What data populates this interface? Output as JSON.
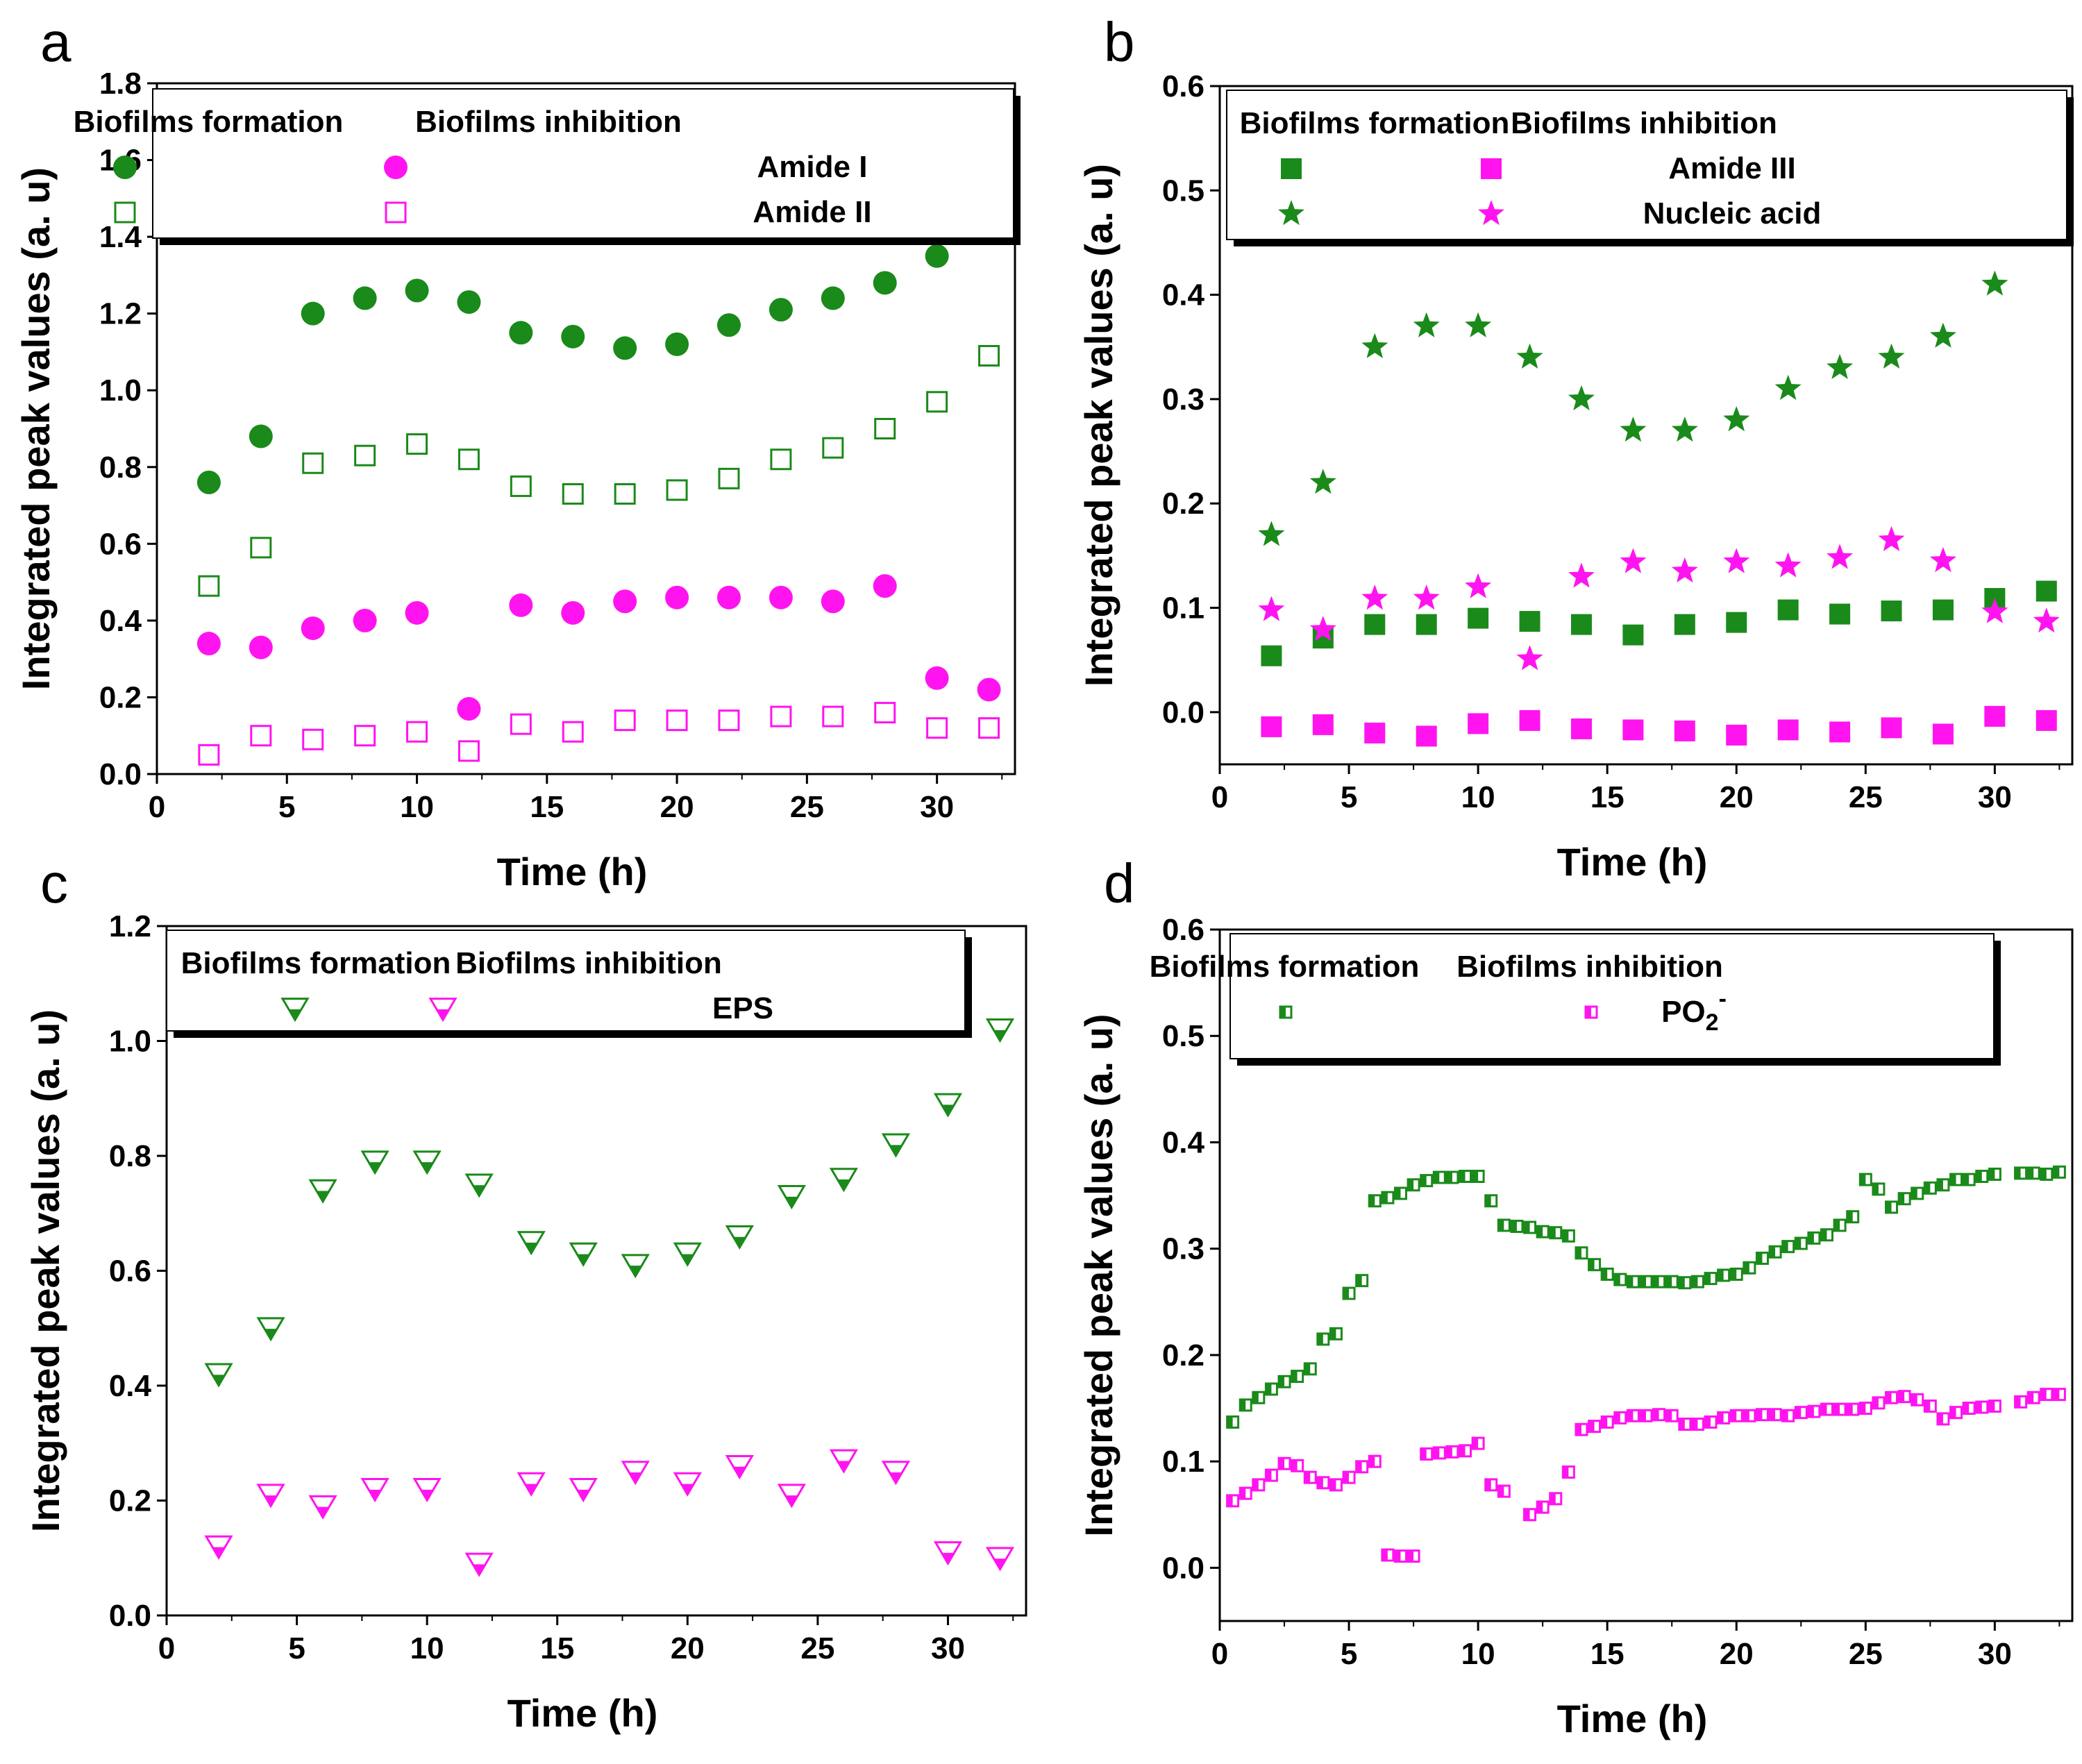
{
  "colors": {
    "formation": "#1a8a1a",
    "inhibition": "#ff14f0",
    "frame": "#000000"
  },
  "chart_data": [
    {
      "panel": "a",
      "type": "scatter",
      "xlabel": "Time (h)",
      "ylabel": "Integrated peak values (a. u)",
      "xlim": [
        0,
        33
      ],
      "ylim": [
        0,
        1.8
      ],
      "xticks": [
        0,
        5,
        10,
        15,
        20,
        25,
        30
      ],
      "yticks": [
        0.0,
        0.2,
        0.4,
        0.6,
        0.8,
        1.0,
        1.2,
        1.4,
        1.6,
        1.8
      ],
      "legend": {
        "header_formation": "Biofilms formation",
        "header_inhibition": "Biofilms inhibition",
        "rows": [
          {
            "label": "Amide I",
            "marker": "circle-filled"
          },
          {
            "label": "Amide II",
            "marker": "square-open"
          }
        ]
      },
      "series": [
        {
          "name": "Amide I - Biofilms formation",
          "group": "formation",
          "marker": "circle-filled",
          "x": [
            2,
            4,
            6,
            8,
            10,
            12,
            14,
            16,
            18,
            20,
            22,
            24,
            26,
            28,
            30
          ],
          "y": [
            0.76,
            0.88,
            1.2,
            1.24,
            1.26,
            1.23,
            1.15,
            1.14,
            1.11,
            1.12,
            1.17,
            1.21,
            1.24,
            1.28,
            1.35
          ]
        },
        {
          "name": "Amide II - Biofilms formation",
          "group": "formation",
          "marker": "square-open",
          "x": [
            2,
            4,
            6,
            8,
            10,
            12,
            14,
            16,
            18,
            20,
            22,
            24,
            26,
            28,
            30,
            32
          ],
          "y": [
            0.49,
            0.59,
            0.81,
            0.83,
            0.86,
            0.82,
            0.75,
            0.73,
            0.73,
            0.74,
            0.77,
            0.82,
            0.85,
            0.9,
            0.97,
            1.09
          ]
        },
        {
          "name": "Amide I - Biofilms inhibition",
          "group": "inhibition",
          "marker": "circle-filled",
          "x": [
            2,
            4,
            6,
            8,
            10,
            12,
            14,
            16,
            18,
            20,
            22,
            24,
            26,
            28,
            30,
            32
          ],
          "y": [
            0.34,
            0.33,
            0.38,
            0.4,
            0.42,
            0.17,
            0.44,
            0.42,
            0.45,
            0.46,
            0.46,
            0.46,
            0.45,
            0.49,
            0.25,
            0.22
          ]
        },
        {
          "name": "Amide II - Biofilms inhibition",
          "group": "inhibition",
          "marker": "square-open",
          "x": [
            2,
            4,
            6,
            8,
            10,
            12,
            14,
            16,
            18,
            20,
            22,
            24,
            26,
            28,
            30,
            32
          ],
          "y": [
            0.05,
            0.1,
            0.09,
            0.1,
            0.11,
            0.06,
            0.13,
            0.11,
            0.14,
            0.14,
            0.14,
            0.15,
            0.15,
            0.16,
            0.12,
            0.12
          ]
        }
      ]
    },
    {
      "panel": "b",
      "type": "scatter",
      "xlabel": "Time (h)",
      "ylabel": "Integrated peak values (a. u)",
      "xlim": [
        0,
        33
      ],
      "ylim": [
        -0.05,
        0.6
      ],
      "xticks": [
        0,
        5,
        10,
        15,
        20,
        25,
        30
      ],
      "yticks": [
        0.0,
        0.1,
        0.2,
        0.3,
        0.4,
        0.5,
        0.6
      ],
      "legend": {
        "header_formation": "Biofilms formation",
        "header_inhibition": "Biofilms inhibition",
        "rows": [
          {
            "label": "Amide III",
            "marker": "square-filled"
          },
          {
            "label": "Nucleic acid",
            "marker": "star"
          }
        ]
      },
      "series": [
        {
          "name": "Nucleic acid - Biofilms formation",
          "group": "formation",
          "marker": "star",
          "x": [
            2,
            4,
            6,
            8,
            10,
            12,
            14,
            16,
            18,
            20,
            22,
            24,
            26,
            28,
            30
          ],
          "y": [
            0.17,
            0.22,
            0.35,
            0.37,
            0.37,
            0.34,
            0.3,
            0.27,
            0.27,
            0.28,
            0.31,
            0.33,
            0.34,
            0.36,
            0.41
          ]
        },
        {
          "name": "Amide III - Biofilms formation",
          "group": "formation",
          "marker": "square-filled",
          "x": [
            2,
            4,
            6,
            8,
            10,
            12,
            14,
            16,
            18,
            20,
            22,
            24,
            26,
            28,
            30,
            32
          ],
          "y": [
            0.054,
            0.071,
            0.084,
            0.084,
            0.09,
            0.087,
            0.084,
            0.074,
            0.084,
            0.086,
            0.098,
            0.094,
            0.097,
            0.098,
            0.109,
            0.116
          ]
        },
        {
          "name": "Nucleic acid - Biofilms inhibition",
          "group": "inhibition",
          "marker": "star",
          "x": [
            2,
            4,
            6,
            8,
            10,
            12,
            14,
            16,
            18,
            20,
            22,
            24,
            26,
            28,
            30,
            32
          ],
          "y": [
            0.098,
            0.079,
            0.109,
            0.109,
            0.12,
            0.051,
            0.13,
            0.144,
            0.135,
            0.144,
            0.14,
            0.148,
            0.165,
            0.145,
            0.096,
            0.087
          ]
        },
        {
          "name": "Amide III - Biofilms inhibition",
          "group": "inhibition",
          "marker": "square-filled",
          "x": [
            2,
            4,
            6,
            8,
            10,
            12,
            14,
            16,
            18,
            20,
            22,
            24,
            26,
            28,
            30,
            32
          ],
          "y": [
            -0.014,
            -0.012,
            -0.02,
            -0.023,
            -0.011,
            -0.008,
            -0.016,
            -0.017,
            -0.018,
            -0.022,
            -0.017,
            -0.019,
            -0.015,
            -0.021,
            -0.004,
            -0.008
          ]
        }
      ]
    },
    {
      "panel": "c",
      "type": "scatter",
      "xlabel": "Time (h)",
      "ylabel": "Integrated peak values (a. u)",
      "xlim": [
        0,
        33
      ],
      "ylim": [
        0,
        1.2
      ],
      "xticks": [
        0,
        5,
        10,
        15,
        20,
        25,
        30
      ],
      "yticks": [
        0.0,
        0.2,
        0.4,
        0.6,
        0.8,
        1.0,
        1.2
      ],
      "legend": {
        "header_formation": "Biofilms formation",
        "header_inhibition": "Biofilms inhibition",
        "rows": [
          {
            "label": "EPS",
            "marker": "triangle-down-half"
          }
        ]
      },
      "series": [
        {
          "name": "EPS - Biofilms formation",
          "group": "formation",
          "marker": "triangle-down-half",
          "x": [
            2,
            4,
            6,
            8,
            10,
            12,
            14,
            16,
            18,
            20,
            22,
            24,
            26,
            28,
            30,
            32
          ],
          "y": [
            0.42,
            0.5,
            0.74,
            0.79,
            0.79,
            0.75,
            0.65,
            0.63,
            0.61,
            0.63,
            0.66,
            0.73,
            0.76,
            0.82,
            0.89,
            1.02
          ]
        },
        {
          "name": "EPS - Biofilms inhibition",
          "group": "inhibition",
          "marker": "triangle-down-half",
          "x": [
            2,
            4,
            6,
            8,
            10,
            12,
            14,
            16,
            18,
            20,
            22,
            24,
            26,
            28,
            30,
            32
          ],
          "y": [
            0.12,
            0.21,
            0.19,
            0.22,
            0.22,
            0.09,
            0.23,
            0.22,
            0.25,
            0.23,
            0.26,
            0.21,
            0.27,
            0.25,
            0.11,
            0.1
          ]
        }
      ]
    },
    {
      "panel": "d",
      "type": "scatter",
      "xlabel": "Time (h)",
      "ylabel": "Integrated peak values (a. u)",
      "xlim": [
        0,
        33
      ],
      "ylim": [
        -0.05,
        0.6
      ],
      "xticks": [
        0,
        5,
        10,
        15,
        20,
        25,
        30
      ],
      "yticks": [
        0.0,
        0.1,
        0.2,
        0.3,
        0.4,
        0.5,
        0.6
      ],
      "legend": {
        "header_formation": "Biofilms formation",
        "header_inhibition": "Biofilms inhibition",
        "rows": [
          {
            "label": "PO",
            "subscript": "2",
            "superscript": "-",
            "marker": "square-half"
          }
        ]
      },
      "series": [
        {
          "name": "PO2- - Biofilms formation",
          "group": "formation",
          "marker": "square-half",
          "x": [
            0.5,
            1,
            1.5,
            2,
            2.5,
            3,
            3.5,
            4,
            4.5,
            5,
            5.5,
            6,
            6.5,
            7,
            7.5,
            8,
            8.5,
            9,
            9.5,
            10,
            10.5,
            11,
            11.5,
            12,
            12.5,
            13,
            13.5,
            14,
            14.5,
            15,
            15.5,
            16,
            16.5,
            17,
            17.5,
            18,
            18.5,
            19,
            19.5,
            20,
            20.5,
            21,
            21.5,
            22,
            22.5,
            23,
            23.5,
            24,
            24.5,
            25,
            25.5,
            26,
            26.5,
            27,
            27.5,
            28,
            28.5,
            29,
            29.5,
            30,
            31,
            31.5,
            32,
            32.5
          ],
          "y": [
            0.137,
            0.153,
            0.16,
            0.168,
            0.175,
            0.18,
            0.187,
            0.215,
            0.22,
            0.258,
            0.27,
            0.345,
            0.348,
            0.352,
            0.36,
            0.364,
            0.367,
            0.367,
            0.368,
            0.368,
            0.345,
            0.322,
            0.321,
            0.32,
            0.316,
            0.315,
            0.312,
            0.296,
            0.285,
            0.276,
            0.271,
            0.269,
            0.269,
            0.269,
            0.269,
            0.268,
            0.269,
            0.272,
            0.275,
            0.276,
            0.282,
            0.291,
            0.297,
            0.302,
            0.305,
            0.31,
            0.313,
            0.322,
            0.33,
            0.365,
            0.356,
            0.339,
            0.347,
            0.352,
            0.357,
            0.36,
            0.365,
            0.365,
            0.368,
            0.37,
            0.371,
            0.371,
            0.37,
            0.372
          ]
        },
        {
          "name": "PO2- - Biofilms inhibition",
          "group": "inhibition",
          "marker": "square-half",
          "x": [
            0.5,
            1,
            1.5,
            2,
            2.5,
            3,
            3.5,
            4,
            4.5,
            5,
            5.5,
            6,
            6.5,
            7,
            7.5,
            8,
            8.5,
            9,
            9.5,
            10,
            10.5,
            11,
            12,
            12.5,
            13,
            13.5,
            14,
            14.5,
            15,
            15.5,
            16,
            16.5,
            17,
            17.5,
            18,
            18.5,
            19,
            19.5,
            20,
            20.5,
            21,
            21.5,
            22,
            22.5,
            23,
            23.5,
            24,
            24.5,
            25,
            25.5,
            26,
            26.5,
            27,
            27.5,
            28,
            28.5,
            29,
            29.5,
            30,
            31,
            31.5,
            32,
            32.5
          ],
          "y": [
            0.063,
            0.07,
            0.078,
            0.087,
            0.098,
            0.096,
            0.085,
            0.08,
            0.078,
            0.085,
            0.095,
            0.1,
            0.012,
            0.011,
            0.011,
            0.107,
            0.108,
            0.109,
            0.11,
            0.117,
            0.078,
            0.072,
            0.05,
            0.057,
            0.065,
            0.09,
            0.13,
            0.133,
            0.137,
            0.141,
            0.143,
            0.143,
            0.144,
            0.143,
            0.135,
            0.135,
            0.137,
            0.141,
            0.143,
            0.143,
            0.144,
            0.144,
            0.143,
            0.146,
            0.147,
            0.149,
            0.149,
            0.149,
            0.15,
            0.155,
            0.16,
            0.161,
            0.158,
            0.152,
            0.14,
            0.146,
            0.15,
            0.151,
            0.152,
            0.156,
            0.16,
            0.163,
            0.163
          ]
        }
      ]
    }
  ]
}
